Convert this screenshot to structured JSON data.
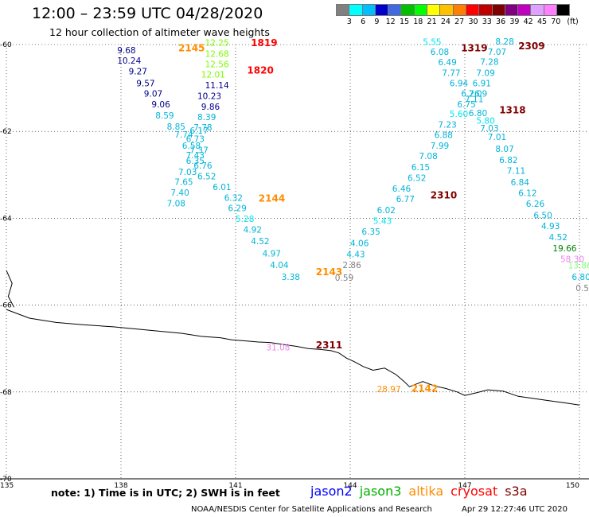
{
  "title": "12:00 – 23:59 UTC 04/28/2020",
  "subtitle": "12 hour collection of altimeter wave heights",
  "colorbar": {
    "colors": [
      "#808080",
      "#00ffff",
      "#00bfff",
      "#0000cd",
      "#4169e1",
      "#00c000",
      "#00ff00",
      "#ffff00",
      "#ffc000",
      "#ff8000",
      "#ff0000",
      "#c00000",
      "#800000",
      "#800080",
      "#c000c0",
      "#e0a0ff",
      "#ff80ff",
      "#000000"
    ],
    "labels": [
      "3",
      "6",
      "9",
      "12",
      "15",
      "18",
      "21",
      "24",
      "27",
      "30",
      "33",
      "36",
      "39",
      "42",
      "45",
      "70",
      "(ft)"
    ]
  },
  "axes": {
    "lon_range": [
      135,
      150
    ],
    "lat_range": [
      -70,
      -60
    ],
    "lon_ticks": [
      "135",
      "138",
      "141",
      "144",
      "147",
      "150"
    ],
    "lat_ticks": [
      "-60",
      "-62",
      "-64",
      "-66",
      "-68",
      "-70"
    ]
  },
  "passes": [
    {
      "label": "2145",
      "color": "#ff8c00",
      "lon": 139.5,
      "lat": -60.16
    },
    {
      "label": "1819",
      "color": "#ff0000",
      "lon": 141.4,
      "lat": -60.04
    },
    {
      "label": "1820",
      "color": "#ff0000",
      "lon": 141.3,
      "lat": -60.67
    },
    {
      "label": "1319",
      "color": "#800000",
      "lon": 146.9,
      "lat": -60.16
    },
    {
      "label": "2309",
      "color": "#800000",
      "lon": 148.4,
      "lat": -60.11
    },
    {
      "label": "1318",
      "color": "#800000",
      "lon": 147.9,
      "lat": -61.58
    },
    {
      "label": "2144",
      "color": "#ff8c00",
      "lon": 141.6,
      "lat": -63.62
    },
    {
      "label": "2310",
      "color": "#800000",
      "lon": 146.1,
      "lat": -63.54
    },
    {
      "label": "2143",
      "color": "#ff8c00",
      "lon": 143.1,
      "lat": -65.31
    },
    {
      "label": "2311",
      "color": "#800000",
      "lon": 143.1,
      "lat": -67.0
    },
    {
      "label": "2142",
      "color": "#ff8c00",
      "lon": 145.6,
      "lat": -67.99
    }
  ],
  "observations": [
    {
      "v": "9.68",
      "color": "#00008b",
      "lon": 137.9,
      "lat": -60.2
    },
    {
      "v": "10.24",
      "color": "#00008b",
      "lon": 137.9,
      "lat": -60.44
    },
    {
      "v": "9.27",
      "color": "#00008b",
      "lon": 138.2,
      "lat": -60.69
    },
    {
      "v": "9.57",
      "color": "#00008b",
      "lon": 138.4,
      "lat": -60.96
    },
    {
      "v": "9.07",
      "color": "#00008b",
      "lon": 138.6,
      "lat": -61.2
    },
    {
      "v": "9.06",
      "color": "#00008b",
      "lon": 138.8,
      "lat": -61.45
    },
    {
      "v": "8.59",
      "color": "#00b4d8",
      "lon": 138.9,
      "lat": -61.7
    },
    {
      "v": "8.85",
      "color": "#00b4d8",
      "lon": 139.2,
      "lat": -61.96
    },
    {
      "v": "7.74",
      "color": "#00b4d8",
      "lon": 139.4,
      "lat": -62.14
    },
    {
      "v": "6.73",
      "color": "#00b4d8",
      "lon": 139.7,
      "lat": -62.24
    },
    {
      "v": "6.17",
      "color": "#00b4d8",
      "lon": 139.8,
      "lat": -62.05
    },
    {
      "v": "6.58",
      "color": "#00b4d8",
      "lon": 139.6,
      "lat": -62.4
    },
    {
      "v": "7.37",
      "color": "#00b4d8",
      "lon": 139.8,
      "lat": -62.5
    },
    {
      "v": "7.43",
      "color": "#00b4d8",
      "lon": 139.7,
      "lat": -62.62
    },
    {
      "v": "6.35",
      "color": "#00b4d8",
      "lon": 139.7,
      "lat": -62.75
    },
    {
      "v": "6.76",
      "color": "#00b4d8",
      "lon": 139.9,
      "lat": -62.86
    },
    {
      "v": "7.03",
      "color": "#00b4d8",
      "lon": 139.5,
      "lat": -63.0
    },
    {
      "v": "6.52",
      "color": "#00b4d8",
      "lon": 140.0,
      "lat": -63.1
    },
    {
      "v": "7.65",
      "color": "#00b4d8",
      "lon": 139.4,
      "lat": -63.23
    },
    {
      "v": "6.01",
      "color": "#00b4d8",
      "lon": 140.4,
      "lat": -63.35
    },
    {
      "v": "7.40",
      "color": "#00b4d8",
      "lon": 139.3,
      "lat": -63.48
    },
    {
      "v": "6.32",
      "color": "#00b4d8",
      "lon": 140.7,
      "lat": -63.6
    },
    {
      "v": "7.08",
      "color": "#00b4d8",
      "lon": 139.2,
      "lat": -63.73
    },
    {
      "v": "6.29",
      "color": "#00b4d8",
      "lon": 140.8,
      "lat": -63.84
    },
    {
      "v": "5.28",
      "color": "#00e5ee",
      "lon": 141.0,
      "lat": -64.08
    },
    {
      "v": "4.92",
      "color": "#00b4d8",
      "lon": 141.2,
      "lat": -64.33
    },
    {
      "v": "4.52",
      "color": "#00b4d8",
      "lon": 141.4,
      "lat": -64.6
    },
    {
      "v": "4.97",
      "color": "#00b4d8",
      "lon": 141.7,
      "lat": -64.88
    },
    {
      "v": "4.04",
      "color": "#00b4d8",
      "lon": 141.9,
      "lat": -65.15
    },
    {
      "v": "3.38",
      "color": "#00b4d8",
      "lon": 142.2,
      "lat": -65.42
    },
    {
      "v": "0.59",
      "color": "#808080",
      "lon": 143.6,
      "lat": -65.44
    },
    {
      "v": "2.86",
      "color": "#808080",
      "lon": 143.8,
      "lat": -65.15
    },
    {
      "v": "4.43",
      "color": "#00b4d8",
      "lon": 143.9,
      "lat": -64.9
    },
    {
      "v": "4.06",
      "color": "#00b4d8",
      "lon": 144.0,
      "lat": -64.64
    },
    {
      "v": "6.35",
      "color": "#00b4d8",
      "lon": 144.3,
      "lat": -64.38
    },
    {
      "v": "5.43",
      "color": "#00e5ee",
      "lon": 144.6,
      "lat": -64.13
    },
    {
      "v": "6.02",
      "color": "#00b4d8",
      "lon": 144.7,
      "lat": -63.88
    },
    {
      "v": "6.77",
      "color": "#00b4d8",
      "lon": 145.2,
      "lat": -63.63
    },
    {
      "v": "6.46",
      "color": "#00b4d8",
      "lon": 145.1,
      "lat": -63.39
    },
    {
      "v": "6.52",
      "color": "#00b4d8",
      "lon": 145.5,
      "lat": -63.14
    },
    {
      "v": "6.15",
      "color": "#00b4d8",
      "lon": 145.6,
      "lat": -62.89
    },
    {
      "v": "7.08",
      "color": "#00b4d8",
      "lon": 145.8,
      "lat": -62.64
    },
    {
      "v": "7.99",
      "color": "#00b4d8",
      "lon": 146.1,
      "lat": -62.4
    },
    {
      "v": "6.88",
      "color": "#00b4d8",
      "lon": 146.2,
      "lat": -62.15
    },
    {
      "v": "7.23",
      "color": "#00b4d8",
      "lon": 146.3,
      "lat": -61.91
    },
    {
      "v": "5.60",
      "color": "#00e5ee",
      "lon": 146.6,
      "lat": -61.67
    },
    {
      "v": "6.75",
      "color": "#00b4d8",
      "lon": 146.8,
      "lat": -61.45
    },
    {
      "v": "6.26",
      "color": "#00b4d8",
      "lon": 146.9,
      "lat": -61.2
    },
    {
      "v": "7.11",
      "color": "#00b4d8",
      "lon": 147.0,
      "lat": -61.33
    },
    {
      "v": "6.94",
      "color": "#00b4d8",
      "lon": 146.6,
      "lat": -60.96
    },
    {
      "v": "7.77",
      "color": "#00b4d8",
      "lon": 146.4,
      "lat": -60.72
    },
    {
      "v": "6.49",
      "color": "#00b4d8",
      "lon": 146.3,
      "lat": -60.48
    },
    {
      "v": "6.08",
      "color": "#00b4d8",
      "lon": 146.1,
      "lat": -60.24
    },
    {
      "v": "5.55",
      "color": "#00e5ee",
      "lon": 145.9,
      "lat": -60.01
    },
    {
      "v": "8.28",
      "color": "#00b4d8",
      "lon": 147.8,
      "lat": -60.0
    },
    {
      "v": "7.07",
      "color": "#00b4d8",
      "lon": 147.6,
      "lat": -60.24
    },
    {
      "v": "7.28",
      "color": "#00b4d8",
      "lon": 147.4,
      "lat": -60.47
    },
    {
      "v": "7.09",
      "color": "#00b4d8",
      "lon": 147.3,
      "lat": -60.72
    },
    {
      "v": "6.91",
      "color": "#00b4d8",
      "lon": 147.2,
      "lat": -60.96
    },
    {
      "v": "7.09",
      "color": "#00b4d8",
      "lon": 147.1,
      "lat": -61.2
    },
    {
      "v": "5.80",
      "color": "#00e5ee",
      "lon": 147.3,
      "lat": -61.82
    },
    {
      "v": "6.80",
      "color": "#00b4d8",
      "lon": 147.1,
      "lat": -61.65
    },
    {
      "v": "7.03",
      "color": "#00b4d8",
      "lon": 147.4,
      "lat": -62.0
    },
    {
      "v": "7.01",
      "color": "#00b4d8",
      "lon": 147.6,
      "lat": -62.2
    },
    {
      "v": "8.07",
      "color": "#00b4d8",
      "lon": 147.8,
      "lat": -62.47
    },
    {
      "v": "6.82",
      "color": "#00b4d8",
      "lon": 147.9,
      "lat": -62.73
    },
    {
      "v": "7.11",
      "color": "#00b4d8",
      "lon": 148.1,
      "lat": -62.98
    },
    {
      "v": "6.84",
      "color": "#00b4d8",
      "lon": 148.2,
      "lat": -63.24
    },
    {
      "v": "6.12",
      "color": "#00b4d8",
      "lon": 148.4,
      "lat": -63.49
    },
    {
      "v": "6.26",
      "color": "#00b4d8",
      "lon": 148.6,
      "lat": -63.74
    },
    {
      "v": "6.50",
      "color": "#00b4d8",
      "lon": 148.8,
      "lat": -64.0
    },
    {
      "v": "4.93",
      "color": "#00b4d8",
      "lon": 149.0,
      "lat": -64.25
    },
    {
      "v": "4.52",
      "color": "#00b4d8",
      "lon": 149.2,
      "lat": -64.51
    },
    {
      "v": "19.66",
      "color": "#008000",
      "lon": 149.3,
      "lat": -64.76
    },
    {
      "v": "58.30",
      "color": "#ee82ee",
      "lon": 149.5,
      "lat": -65.01
    },
    {
      "v": "13.86",
      "color": "#7fff7f",
      "lon": 149.7,
      "lat": -65.16
    },
    {
      "v": "6.80",
      "color": "#00b4d8",
      "lon": 149.8,
      "lat": -65.42
    },
    {
      "v": "0.5",
      "color": "#808080",
      "lon": 149.9,
      "lat": -65.68
    },
    {
      "v": "12.25",
      "color": "#7cfc00",
      "lon": 140.2,
      "lat": -60.03
    },
    {
      "v": "12.68",
      "color": "#7cfc00",
      "lon": 140.2,
      "lat": -60.28
    },
    {
      "v": "12.56",
      "color": "#7cfc00",
      "lon": 140.2,
      "lat": -60.52
    },
    {
      "v": "12.01",
      "color": "#7cfc00",
      "lon": 140.1,
      "lat": -60.76
    },
    {
      "v": "11.14",
      "color": "#00008b",
      "lon": 140.2,
      "lat": -61.01
    },
    {
      "v": "10.23",
      "color": "#00008b",
      "lon": 140.0,
      "lat": -61.25
    },
    {
      "v": "9.86",
      "color": "#00008b",
      "lon": 140.1,
      "lat": -61.5
    },
    {
      "v": "8.39",
      "color": "#00b4d8",
      "lon": 140.0,
      "lat": -61.74
    },
    {
      "v": "7.78",
      "color": "#00b4d8",
      "lon": 139.9,
      "lat": -61.98
    },
    {
      "v": "31.08",
      "color": "#ee82ee",
      "lon": 141.8,
      "lat": -67.04
    },
    {
      "v": "28.97",
      "color": "#ff8c00",
      "lon": 144.7,
      "lat": -68.0
    }
  ],
  "note": "note:  1) Time is in UTC;  2) SWH is in feet",
  "legend": [
    {
      "label": "jason2",
      "color": "#0000ff"
    },
    {
      "label": "jason3",
      "color": "#00b000"
    },
    {
      "label": "altika",
      "color": "#ff8c00"
    },
    {
      "label": "cryosat",
      "color": "#ff0000"
    },
    {
      "label": "s3a",
      "color": "#800000"
    }
  ],
  "credit": "NOAA/NESDIS Center for Satellite Applications and Research",
  "timestamp": "Apr 29 12:27:46 UTC 2020"
}
